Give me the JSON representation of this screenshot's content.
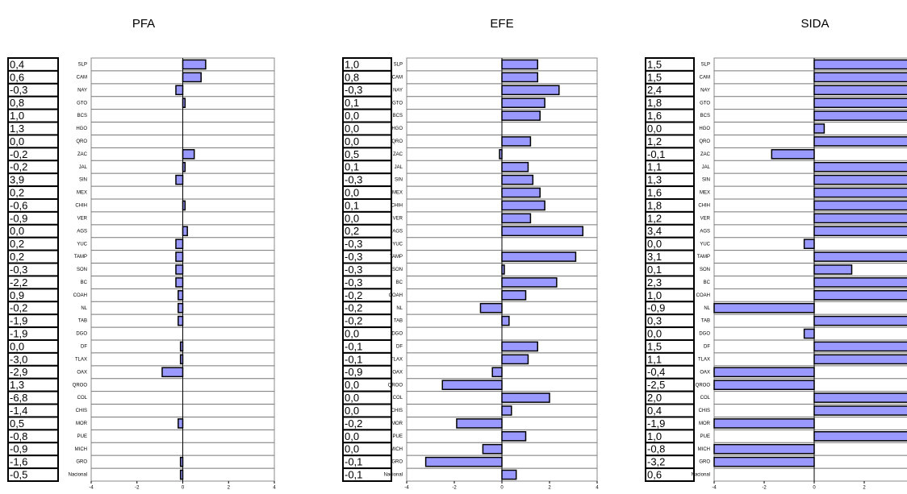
{
  "chart_data": [
    {
      "type": "bar",
      "orientation": "horizontal",
      "title": "PFA",
      "color": "#9999ff",
      "categories": [
        "SLP",
        "CAM",
        "NAY",
        "GTO",
        "BCS",
        "HGO",
        "QRO",
        "ZAC",
        "JAL",
        "SIN",
        "MEX",
        "CHIH",
        "VER",
        "AGS",
        "YUC",
        "TAMP",
        "SON",
        "BC",
        "COAH",
        "NL",
        "TAB",
        "DGO",
        "DF",
        "TLAX",
        "OAX",
        "QROO",
        "COL",
        "CHIS",
        "MOR",
        "PUE",
        "MICH",
        "GRO",
        "Nacional"
      ],
      "values": [
        1.0,
        0.8,
        -0.3,
        0.1,
        0.0,
        0.0,
        0.0,
        0.5,
        0.1,
        -0.3,
        0.0,
        0.1,
        0.0,
        0.2,
        -0.3,
        -0.3,
        -0.3,
        -0.3,
        -0.2,
        -0.2,
        -0.2,
        0.0,
        -0.1,
        -0.1,
        -0.9,
        0.0,
        0.0,
        0.0,
        -0.2,
        0.0,
        0.0,
        -0.1,
        -0.1
      ],
      "table_values": [
        "0,4",
        "0,6",
        "-0,3",
        "0,8",
        "1,0",
        "1,3",
        "0,0",
        "-0,2",
        "-0,2",
        "3,9",
        "0,2",
        "-0,6",
        "-0,9",
        "0,0",
        "0,2",
        "0,2",
        "-0,3",
        "-2,2",
        "0,9",
        "-0,2",
        "-1,9",
        "-1,9",
        "0,0",
        "-3,0",
        "-2,9",
        "1,3",
        "-6,8",
        "-1,4",
        "0,5",
        "-0,8",
        "-0,9",
        "-1,6",
        "-0,5"
      ],
      "xlim": [
        -4,
        4
      ],
      "xticks": [
        -4,
        -2,
        0,
        2,
        4
      ]
    },
    {
      "type": "bar",
      "orientation": "horizontal",
      "title": "EFE",
      "color": "#9999ff",
      "categories": [
        "SLP",
        "CAM",
        "NAY",
        "GTO",
        "BCS",
        "HGO",
        "QRO",
        "ZAC",
        "JAL",
        "SIN",
        "MEX",
        "CHIH",
        "VER",
        "AGS",
        "YUC",
        "TAMP",
        "SON",
        "BC",
        "COAH",
        "NL",
        "TAB",
        "DGO",
        "DF",
        "TLAX",
        "OAX",
        "QROO",
        "COL",
        "CHIS",
        "MOR",
        "PUE",
        "MICH",
        "GRO",
        "Nacional"
      ],
      "values": [
        1.5,
        1.5,
        2.4,
        1.8,
        1.6,
        0.0,
        1.2,
        -0.1,
        1.1,
        1.3,
        1.6,
        1.8,
        1.2,
        3.4,
        0.0,
        3.1,
        0.1,
        2.3,
        1.0,
        -0.9,
        0.3,
        0.0,
        1.5,
        1.1,
        -0.4,
        -2.5,
        2.0,
        0.4,
        -1.9,
        1.0,
        -0.8,
        -3.2,
        0.6
      ],
      "table_values": [
        "1,0",
        "0,8",
        "-0,3",
        "0,1",
        "0,0",
        "0,0",
        "0,0",
        "0,5",
        "0,1",
        "-0,3",
        "0,0",
        "0,1",
        "0,0",
        "0,2",
        "-0,3",
        "-0,3",
        "-0,3",
        "-0,3",
        "-0,2",
        "-0,2",
        "-0,2",
        "0,0",
        "-0,1",
        "-0,1",
        "-0,9",
        "0,0",
        "0,0",
        "0,0",
        "-0,2",
        "0,0",
        "0,0",
        "-0,1",
        "-0,1"
      ],
      "xlim": [
        -4,
        4
      ],
      "xticks": [
        -4,
        -2,
        0,
        2,
        4
      ]
    },
    {
      "type": "bar",
      "orientation": "horizontal",
      "title": "SIDA",
      "color": "#9999ff",
      "categories": [
        "SLP",
        "CAM",
        "NAY",
        "GTO",
        "BCS",
        "HGO",
        "QRO",
        "ZAC",
        "JAL",
        "SIN",
        "MEX",
        "CHIH",
        "VER",
        "AGS",
        "YUC",
        "TAMP",
        "SON",
        "BC",
        "COAH",
        "NL",
        "TAB",
        "DGO",
        "DF",
        "TLAX",
        "OAX",
        "QROO",
        "COL",
        "CHIS",
        "MOR",
        "PUE",
        "MICH",
        "GRO",
        "Nacional"
      ],
      "values": [
        4,
        4,
        4,
        4,
        4,
        0.4,
        4,
        -1.7,
        4,
        4,
        4,
        4,
        4,
        4,
        -0.4,
        4,
        1.5,
        4,
        4,
        -4,
        4,
        -0.4,
        4,
        4,
        -4,
        -4,
        4,
        4,
        -4,
        4,
        -4,
        -4,
        0
      ],
      "table_values": [
        "1,5",
        "1,5",
        "2,4",
        "1,8",
        "1,6",
        "0,0",
        "1,2",
        "-0,1",
        "1,1",
        "1,3",
        "1,6",
        "1,8",
        "1,2",
        "3,4",
        "0,0",
        "3,1",
        "0,1",
        "2,3",
        "1,0",
        "-0,9",
        "0,3",
        "0,0",
        "1,5",
        "1,1",
        "-0,4",
        "-2,5",
        "2,0",
        "0,4",
        "-1,9",
        "1,0",
        "-0,8",
        "-3,2",
        "0,6"
      ],
      "xlim": [
        -4,
        4
      ],
      "xticks": [
        -4,
        -2,
        0,
        2
      ]
    }
  ]
}
